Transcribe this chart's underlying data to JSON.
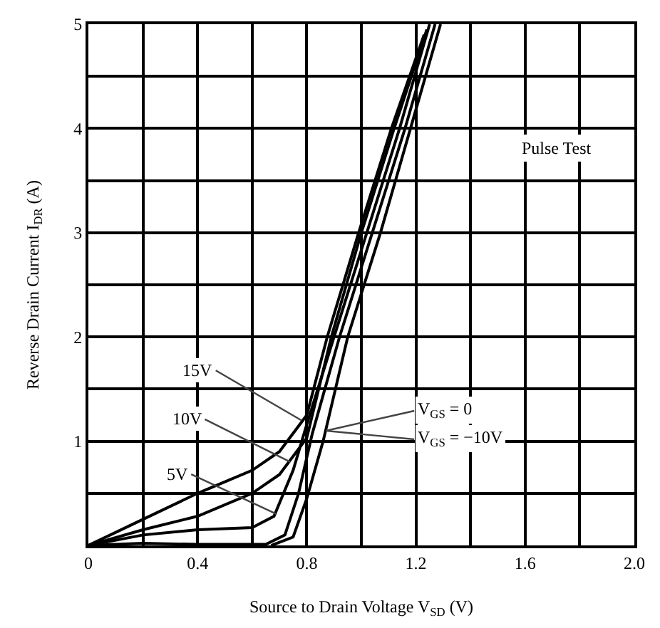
{
  "chart_data": {
    "type": "line",
    "xlabel": "Source to Drain Voltage V$_{SD}$ (V)",
    "ylabel": "Reverse Drain Current I$_{DR}$ (A)",
    "xlim": [
      0,
      2.0
    ],
    "ylim": [
      0,
      5
    ],
    "xticks": [
      0,
      {
        "value": 0.2,
        "label": null
      },
      {
        "value": 0.4,
        "label": "0.4"
      },
      {
        "value": 0.6,
        "label": null
      },
      {
        "value": 0.8,
        "label": "0.8"
      },
      {
        "value": 1.0,
        "label": null
      },
      {
        "value": 1.2,
        "label": "1.2"
      },
      {
        "value": 1.4,
        "label": null
      },
      {
        "value": 1.6,
        "label": "1.6"
      },
      {
        "value": 1.8,
        "label": null
      },
      {
        "value": 2.0,
        "label": "2.0"
      }
    ],
    "yticks": [
      {
        "value": 0,
        "label": null
      },
      {
        "value": 0.5,
        "label": null
      },
      1,
      {
        "value": 1.5,
        "label": null
      },
      2,
      {
        "value": 2.5,
        "label": null
      },
      3,
      {
        "value": 3.5,
        "label": null
      },
      4,
      {
        "value": 4.5,
        "label": null
      },
      5
    ],
    "grid": true,
    "marker": "none",
    "line_style": "solid",
    "series": [
      {
        "color": "#000000",
        "x": [
          0,
          0.2,
          0.4,
          0.6,
          0.7,
          0.8,
          0.875,
          0.99,
          1.11,
          1.23
        ],
        "values": [
          0,
          0.25,
          0.5,
          0.72,
          0.9,
          1.25,
          2,
          3,
          4,
          4.9
        ]
      },
      {
        "color": "#000000",
        "x": [
          0,
          0.2,
          0.4,
          0.6,
          0.7,
          0.8,
          0.89,
          1.0,
          1.12,
          1.24
        ],
        "values": [
          0,
          0.15,
          0.28,
          0.5,
          0.68,
          1.03,
          2,
          3,
          4,
          4.95
        ]
      },
      {
        "color": "#000000",
        "x": [
          0,
          0.2,
          0.4,
          0.6,
          0.68,
          0.75,
          0.8,
          0.9,
          1.02,
          1.14,
          1.25
        ],
        "values": [
          0,
          0.1,
          0.15,
          0.17,
          0.28,
          0.72,
          1.16,
          2,
          3,
          4,
          5
        ]
      },
      {
        "color": "#000000",
        "x": [
          0,
          0.2,
          0.4,
          0.65,
          0.72,
          0.77,
          0.82,
          0.92,
          1.04,
          1.16,
          1.27
        ],
        "values": [
          0,
          0.02,
          0.01,
          0.01,
          0.1,
          0.5,
          1.07,
          2,
          3,
          4,
          5
        ]
      },
      {
        "color": "#000000",
        "x": [
          0.67,
          0.75,
          0.8,
          0.86,
          0.95,
          1.07,
          1.18,
          1.29
        ],
        "values": [
          0,
          0.08,
          0.45,
          1.0,
          2,
          3,
          4,
          5
        ]
      }
    ],
    "annotations": [
      {
        "text": "15V",
        "x": 0.78,
        "y": 1.2
      },
      {
        "text": "10V",
        "x": 0.74,
        "y": 0.8
      },
      {
        "text": "5V",
        "x": 0.69,
        "y": 0.3
      },
      {
        "text": "V$_{GS}$ = 0",
        "x": 0.87,
        "y": 1.1
      },
      {
        "text": "V$_{GS}$ = −10V",
        "x": 0.87,
        "y": 1.1
      },
      "Pulse Test"
    ]
  }
}
